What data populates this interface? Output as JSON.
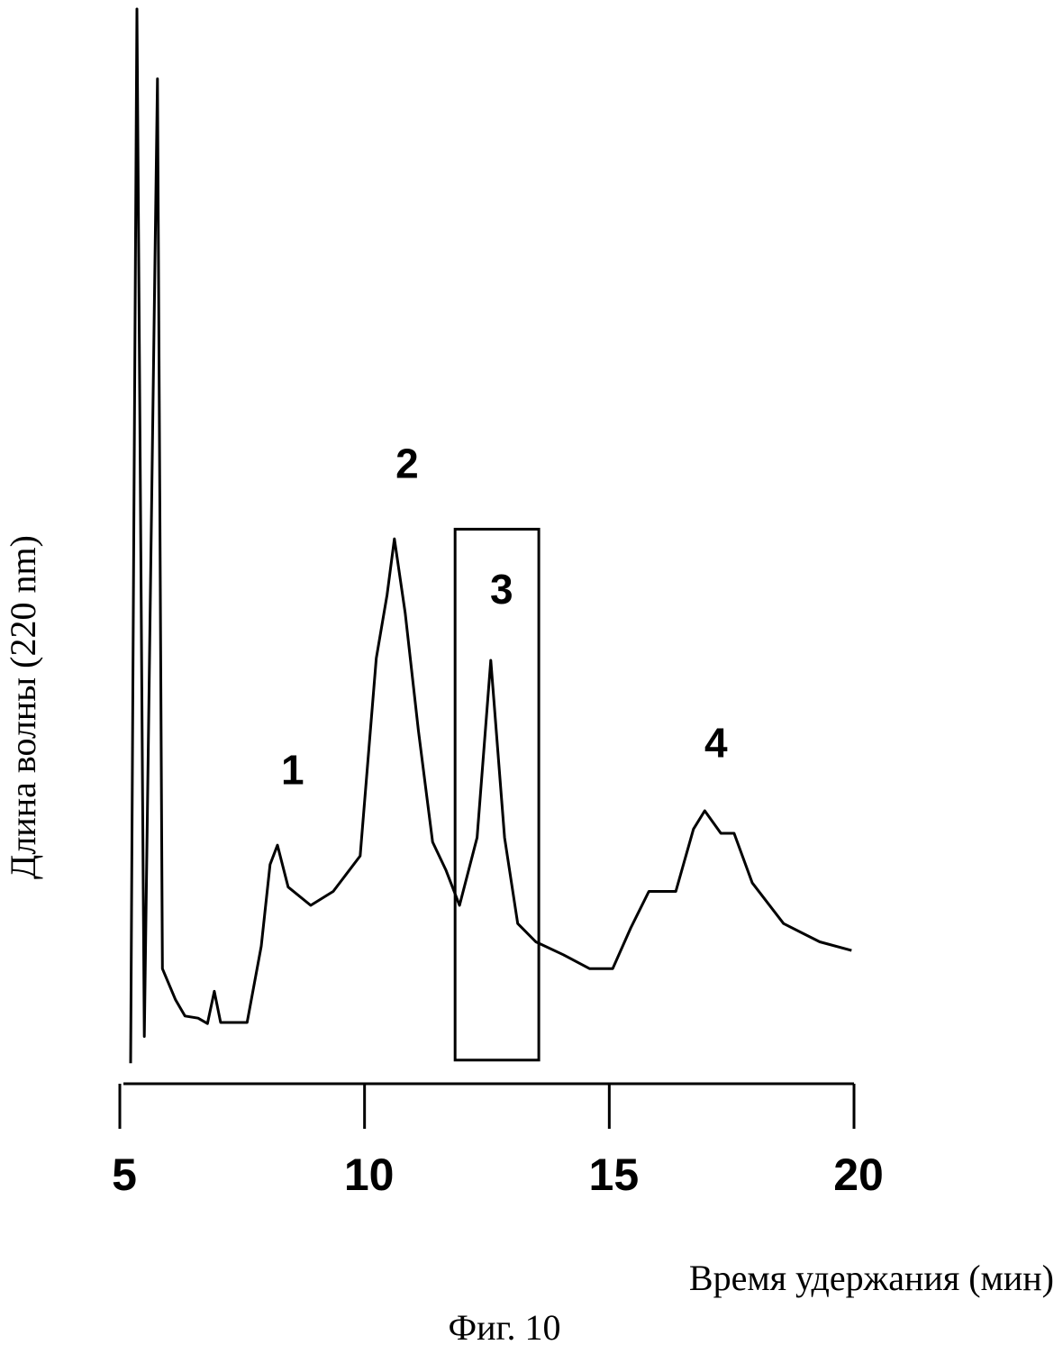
{
  "chart_data": {
    "type": "line",
    "caption": "Фиг. 10",
    "x_label": "Время удержания (мин)",
    "y_label": "Длина волны (220 nm)",
    "x": [
      5.22,
      5.35,
      5.5,
      5.77,
      5.87,
      6.14,
      6.33,
      6.6,
      6.79,
      6.93,
      7.06,
      7.6,
      7.89,
      8.07,
      8.22,
      8.44,
      8.9,
      9.36,
      9.91,
      10.24,
      10.46,
      10.61,
      10.83,
      11.1,
      11.39,
      11.66,
      11.94,
      12.3,
      12.58,
      12.86,
      13.13,
      13.5,
      14.06,
      14.6,
      15.07,
      15.44,
      15.81,
      16.36,
      16.72,
      16.95,
      17.28,
      17.55,
      17.92,
      18.56,
      19.3,
      19.95
    ],
    "values": [
      1.9,
      100,
      4.4,
      93.5,
      10.7,
      7.8,
      6.3,
      6.1,
      5.6,
      8.6,
      5.7,
      5.7,
      12.8,
      20.4,
      22.2,
      18.3,
      16.6,
      17.9,
      21.2,
      39.6,
      45.5,
      50.7,
      43.8,
      32.9,
      22.5,
      19.9,
      16.6,
      22.9,
      39.4,
      22.9,
      14.9,
      13.2,
      12.0,
      10.7,
      10.7,
      14.5,
      17.9,
      17.9,
      23.7,
      25.4,
      23.3,
      23.3,
      18.7,
      14.9,
      13.2,
      12.4
    ],
    "color": "#000000",
    "xlim": [
      5,
      20
    ],
    "ylim": [
      0,
      100
    ],
    "xticks": [
      5,
      10,
      15,
      20
    ],
    "annotations": [
      {
        "text": "1",
        "x": 8.53,
        "y": 28.9
      },
      {
        "text": "2",
        "x": 10.87,
        "y": 57.4
      },
      {
        "text": "3",
        "x": 12.8,
        "y": 45.7
      },
      {
        "text": "4",
        "x": 17.18,
        "y": 31.4
      }
    ],
    "highlight_region": {
      "x": [
        11.85,
        13.56
      ],
      "y": [
        2.2,
        51.6
      ]
    }
  }
}
